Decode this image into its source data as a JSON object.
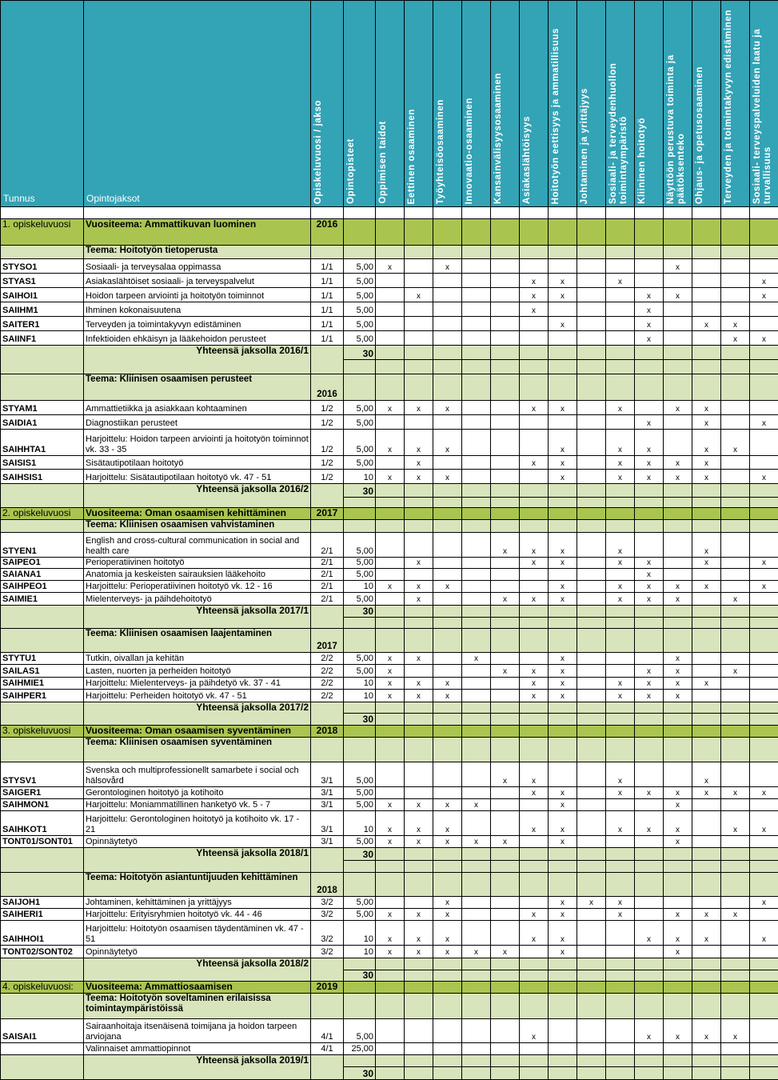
{
  "header": {
    "tunnus": "Tunnus",
    "opintojaksot": "Opintojaksot",
    "jakso": "Opiskeluvuosi / jakso",
    "opintopisteet": "Opintopisteet",
    "competencies": [
      "Oppimisen taidot",
      "Eettinen osaaminen",
      "Työyhteisöosaaminen",
      "Innovaatio-osaaminen",
      "Kansainvälisyysosaaminen",
      "Asiakaslähtöisyys",
      "Hoitotyön eettisyys ja ammatillisuus",
      "Johtaminen ja yrittäjyys",
      "Sosiaali- ja terveydenhuollon toimintaympäristö",
      "Kliininen hoitotyö",
      "Näyttöön perustuva toiminta ja päätöksenteko",
      "Ohjaus- ja opetusosaaminen",
      "Terveyden ja toimintakyvyn edistäminen",
      "Sosiaali- terveyspalveluiden laatu ja turvallisuus"
    ]
  },
  "mark_symbol": "x",
  "colors": {
    "header": "#33a3b6",
    "year_row": "#a9c550",
    "theme_row": "#d8e4bc"
  },
  "rows": [
    {
      "type": "blank"
    },
    {
      "type": "year",
      "label": "1. opiskeluvuosi",
      "theme": "Vuositeema: Ammattikuvan luominen",
      "year": "2016"
    },
    {
      "type": "theme",
      "theme": "Teema: Hoitotyön tietoperusta",
      "year": ""
    },
    {
      "type": "course",
      "code": "STYSO1",
      "name": "Sosiaali- ja terveysalaa oppimassa",
      "period": "1/1",
      "credits": "5,00",
      "marks": [
        1,
        3,
        11
      ]
    },
    {
      "type": "course",
      "code": "STYAS1",
      "name": "Asiakaslähtöiset sosiaali- ja terveyspalvelut",
      "period": "1/1",
      "credits": "5,00",
      "marks": [
        6,
        7,
        9,
        14
      ]
    },
    {
      "type": "course",
      "code": "SAIHOI1",
      "name": "Hoidon tarpeen arviointi ja hoitotyön toiminnot",
      "period": "1/1",
      "credits": "5,00",
      "marks": [
        2,
        6,
        7,
        10,
        11,
        14
      ]
    },
    {
      "type": "course",
      "code": "SAIIHM1",
      "name": "Ihminen kokonaisuutena",
      "period": "1/1",
      "credits": "5,00",
      "marks": [
        6,
        10
      ]
    },
    {
      "type": "course",
      "code": "SAITER1",
      "name": "Terveyden ja toimintakyvyn edistäminen",
      "period": "1/1",
      "credits": "5,00",
      "marks": [
        7,
        10,
        12,
        13
      ]
    },
    {
      "type": "course",
      "code": "SAIINF1",
      "name": "Infektioiden ehkäisyn ja lääkehoidon perusteet",
      "period": "1/1",
      "credits": "5,00",
      "marks": [
        10,
        13,
        14
      ]
    },
    {
      "type": "total",
      "label": "Yhteensä jaksolla 2016/1",
      "sum": "30"
    },
    {
      "type": "theme",
      "theme": "Teema: Kliinisen osaamisen perusteet",
      "year": "2016"
    },
    {
      "type": "course",
      "code": "STYAM1",
      "name": "Ammattietiikka ja asiakkaan kohtaaminen",
      "period": "1/2",
      "credits": "5,00",
      "marks": [
        1,
        2,
        3,
        6,
        7,
        9,
        11,
        12
      ]
    },
    {
      "type": "course",
      "code": "SAIDIA1",
      "name": "Diagnostiikan perusteet",
      "period": "1/2",
      "credits": "5,00",
      "marks": [
        10,
        12,
        14
      ]
    },
    {
      "type": "course",
      "code": "SAIHHTA1",
      "name": "Harjoittelu: Hoidon tarpeen arviointi ja hoitotyön toiminnot vk. 33 - 35",
      "period": "1/2",
      "credits": "5,00",
      "marks": [
        1,
        2,
        3,
        7,
        9,
        10,
        12,
        13
      ]
    },
    {
      "type": "course",
      "code": "SAISIS1",
      "name": "Sisätautipotilaan hoitotyö",
      "period": "1/2",
      "credits": "5,00",
      "marks": [
        2,
        6,
        7,
        9,
        10,
        11,
        12
      ]
    },
    {
      "type": "course",
      "code": "SAIHSIS1",
      "name": "Harjoittelu: Sisätautipotilaan hoitotyö vk. 47 - 51",
      "period": "1/2",
      "credits": "10",
      "marks": [
        1,
        2,
        3,
        7,
        9,
        10,
        11,
        12,
        14
      ]
    },
    {
      "type": "total",
      "label": "Yhteensä jaksolla 2016/2",
      "sum": "30"
    },
    {
      "type": "year",
      "label": "2. opiskeluvuosi",
      "theme": "Vuositeema: Oman osaamisen kehittäminen",
      "year": "2017"
    },
    {
      "type": "theme",
      "theme": "Teema: Kliinisen osaamisen vahvistaminen",
      "year": ""
    },
    {
      "type": "course",
      "code": "STYEN1",
      "name": "English and cross-cultural communication in social and health care",
      "period": "2/1",
      "credits": "5,00",
      "marks": [
        5,
        6,
        7,
        9,
        12
      ]
    },
    {
      "type": "course",
      "code": "SAIPEO1",
      "name": "Perioperatiivinen hoitotyö",
      "period": "2/1",
      "credits": "5,00",
      "marks": [
        2,
        6,
        7,
        9,
        10,
        12,
        14
      ]
    },
    {
      "type": "course",
      "code": "SAIANA1",
      "name": "Anatomia ja keskeisten sairauksien lääkehoito",
      "period": "2/1",
      "credits": "5,00",
      "marks": [
        10
      ]
    },
    {
      "type": "course",
      "code": "SAIHPEO1",
      "name": "Harjoittelu: Perioperatiivinen hoitotyö vk. 12 - 16",
      "period": "2/1",
      "credits": "10",
      "marks": [
        1,
        2,
        3,
        7,
        9,
        10,
        11,
        12,
        14
      ]
    },
    {
      "type": "course",
      "code": "SAIMIE1",
      "name": "Mielenterveys- ja päihdehoitotyö",
      "period": "2/1",
      "credits": "5,00",
      "marks": [
        2,
        5,
        6,
        7,
        9,
        10,
        11,
        13
      ]
    },
    {
      "type": "total",
      "label": "Yhteensä jaksolla 2017/1",
      "sum": "30"
    },
    {
      "type": "theme",
      "theme": "Teema: Kliinisen osaamisen laajentaminen",
      "year": "2017"
    },
    {
      "type": "course",
      "code": "STYTU1",
      "name": "Tutkin, oivallan ja kehitän",
      "period": "2/2",
      "credits": "5,00",
      "marks": [
        1,
        2,
        4,
        7,
        11
      ]
    },
    {
      "type": "course",
      "code": "SAILAS1",
      "name": "Lasten, nuorten ja perheiden hoitotyö",
      "period": "2/2",
      "credits": "5,00",
      "marks": [
        1,
        5,
        6,
        7,
        10,
        11,
        13
      ]
    },
    {
      "type": "course",
      "code": "SAIHMIE1",
      "name": "Harjoittelu: Mielenterveys- ja päihdetyö vk. 37 - 41",
      "period": "2/2",
      "credits": "10",
      "marks": [
        1,
        2,
        3,
        6,
        7,
        9,
        10,
        11,
        12
      ]
    },
    {
      "type": "course",
      "code": "SAIHPER1",
      "name": "Harjoittelu: Perheiden hoitotyö vk. 47 - 51",
      "period": "2/2",
      "credits": "10",
      "marks": [
        1,
        2,
        3,
        6,
        7,
        9,
        10,
        11
      ]
    },
    {
      "type": "total",
      "label": "Yhteensä jaksolla 2017/2",
      "sum": "30"
    },
    {
      "type": "year",
      "label": "3. opiskeluvuosi",
      "theme": "Vuositeema:  Oman osaamisen syventäminen",
      "year": "2018"
    },
    {
      "type": "theme",
      "theme": "Teema: Kliinisen osaamisen syventäminen",
      "year": ""
    },
    {
      "type": "course",
      "code": "STYSV1",
      "name": "Svenska och multiprofessionellt samarbete i social och hälsovård",
      "period": "3/1",
      "credits": "5,00",
      "marks": [
        5,
        6,
        9,
        12
      ]
    },
    {
      "type": "course",
      "code": "SAIGER1",
      "name": "Gerontologinen hoitotyö ja kotihoito",
      "period": "3/1",
      "credits": "5,00",
      "marks": [
        6,
        7,
        9,
        10,
        11,
        12,
        13,
        14
      ]
    },
    {
      "type": "course",
      "code": "SAIHMON1",
      "name": "Harjoittelu: Moniammatillinen hanketyö vk. 5 - 7",
      "period": "3/1",
      "credits": "5,00",
      "marks": [
        1,
        2,
        3,
        4,
        7,
        11
      ]
    },
    {
      "type": "course",
      "code": "SAIHKOT1",
      "name": "Harjoittelu: Gerontologinen hoitotyö ja kotihoito vk. 17 - 21",
      "period": "3/1",
      "credits": "10",
      "marks": [
        1,
        2,
        3,
        6,
        7,
        9,
        10,
        11,
        13,
        14
      ]
    },
    {
      "type": "course",
      "code": "TONT01/SONT01",
      "name": "Opinnäytetyö",
      "period": "3/1",
      "credits": "5,00",
      "marks": [
        1,
        2,
        3,
        4,
        5,
        7,
        11
      ]
    },
    {
      "type": "total",
      "label": "Yhteensä jaksolla 2018/1",
      "sum": "30"
    },
    {
      "type": "theme",
      "theme": "Teema: Hoitotyön asiantuntijuuden kehittäminen",
      "year": "2018"
    },
    {
      "type": "course",
      "code": "SAIJOH1",
      "name": "Johtaminen, kehittäminen ja yrittäjyys",
      "period": "3/2",
      "credits": "5,00",
      "marks": [
        3,
        7,
        8,
        9,
        14
      ]
    },
    {
      "type": "course",
      "code": "SAIHERI1",
      "name": "Harjoittelu: Erityisryhmien hoitotyö vk. 44 - 46",
      "period": "3/2",
      "credits": "5,00",
      "marks": [
        1,
        2,
        3,
        6,
        7,
        9,
        11,
        12,
        13
      ]
    },
    {
      "type": "course",
      "code": "SAIHHOI1",
      "name": "Harjoittelu: Hoitotyön osaamisen täydentäminen vk. 47 - 51",
      "period": "3/2",
      "credits": "10",
      "marks": [
        1,
        2,
        3,
        6,
        7,
        10,
        11,
        12,
        14
      ]
    },
    {
      "type": "course",
      "code": "TONT02/SONT02",
      "name": "Opinnäytetyö",
      "period": "3/2",
      "credits": "10",
      "marks": [
        1,
        2,
        3,
        4,
        5,
        7,
        11
      ]
    },
    {
      "type": "total",
      "label": "Yhteensä jaksolla 2018/2",
      "sum": "30"
    },
    {
      "type": "year",
      "label": "4. opiskeluvuosi:",
      "theme": "Vuositeema: Ammattiosaamisen",
      "year": "2019"
    },
    {
      "type": "theme",
      "theme": "Teema: Hoitotyön soveltaminen erilaisissa toimintaympäristöissä",
      "year": ""
    },
    {
      "type": "course",
      "code": "SAISAI1",
      "name": "Sairaanhoitaja itsenäisenä toimijana ja hoidon tarpeen arviojana",
      "period": "4/1",
      "credits": "5,00",
      "marks": [
        6,
        10,
        11,
        12,
        13
      ]
    },
    {
      "type": "course",
      "code": "",
      "name": "Valinnaiset ammattiopinnot",
      "period": "4/1",
      "credits": "25,00",
      "marks": []
    },
    {
      "type": "total",
      "label": "Yhteensä jaksolla 2019/1",
      "sum": "30"
    }
  ]
}
